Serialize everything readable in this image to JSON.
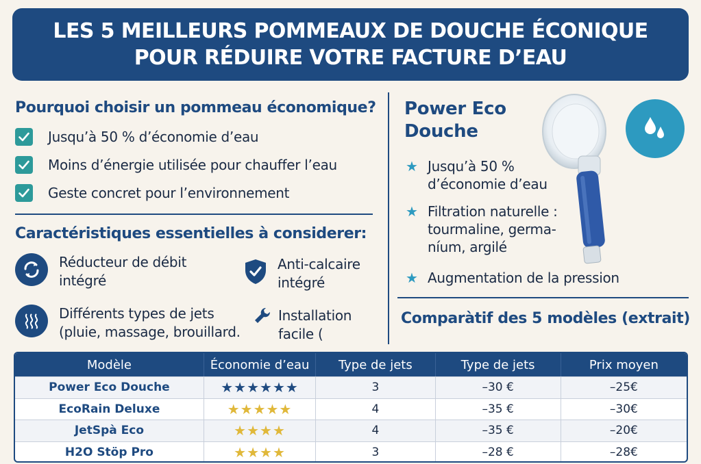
{
  "header": {
    "title_line1": "LES 5 MEILLEURS POMMEAUX DE DOUCHE ÉCONIQUE",
    "title_line2": "POUR RÉDUIRE VOTRE FACTURE D’EAU"
  },
  "why": {
    "heading": "Pourquoi choisir un pommeau économique?",
    "items": [
      "Jusqu’à 50 % d’économie d’eau",
      "Moins d’énergie utilisée pour chauffer l’eau",
      "Geste concret pour l’environnement"
    ]
  },
  "features": {
    "heading": "Caractéristiques essentielles à considerer:",
    "items": [
      {
        "line1": "Réducteur de débit",
        "line2": "intégré",
        "icon": "cycle-icon"
      },
      {
        "line1": "Anti-calcaire",
        "line2": "intégré",
        "icon": "shield-check-icon"
      },
      {
        "line1": "Différents types de jets",
        "line2": "(pluie, massage, brouillard.",
        "icon": "steam-icon"
      },
      {
        "line1": "Installation",
        "line2": "facile (",
        "icon": "wrench-icon"
      }
    ]
  },
  "product": {
    "title_line1": "Power Eco",
    "title_line2": "Douche",
    "bullets": [
      {
        "line1": "Jusqu’à 50 %",
        "line2": "d’économie d’eau"
      },
      {
        "line1": "Filtration naturelle :",
        "line2": "tourmaline, germa-",
        "line3": "níum, argilé"
      },
      {
        "line1": "Augmentation de la pression"
      }
    ],
    "colors": {
      "accent": "#1e4a80",
      "teal": "#2d9ac0"
    }
  },
  "comparison": {
    "heading": "Comparàtif des 5 modèles (extrait)",
    "columns": [
      "Modèle",
      "Économie d’eau",
      "Type de jets",
      "Type de jets",
      "Prix moyen"
    ],
    "rows": [
      {
        "model": "Power Eco Douche",
        "stars": "★★★★★★",
        "star_count": 6,
        "star_color": "#1e4a80",
        "jets": "3",
        "price_a": "–30 €",
        "price_b": "–25€"
      },
      {
        "model": "EcoRain Deluxe",
        "stars": "★★★★★",
        "star_count": 5,
        "star_color": "#e0b83a",
        "jets": "4",
        "price_a": "–35 €",
        "price_b": "–30€"
      },
      {
        "model": "JetSpà Eco",
        "stars": "★★★★",
        "star_count": 4,
        "star_color": "#e0b83a",
        "jets": "4",
        "price_a": "–35 €",
        "price_b": "–20€"
      },
      {
        "model": "H2O Stöp Pro",
        "stars": "★★★★",
        "star_count": 4,
        "star_color": "#e0b83a",
        "jets": "3",
        "price_a": "–28 €",
        "price_b": "–28€"
      }
    ]
  }
}
